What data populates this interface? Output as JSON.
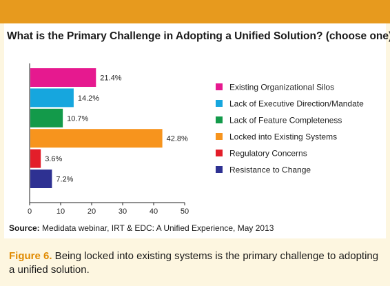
{
  "chart_data": {
    "type": "bar",
    "orientation": "horizontal",
    "title": "What is the Primary Challenge in Adopting a Unified Solution? (choose one)",
    "categories": [
      "Existing Organizational Silos",
      "Lack of Executive Direction/Mandate",
      "Lack of Feature Completeness",
      "Locked into Existing Systems",
      "Regulatory Concerns",
      "Resistance to Change"
    ],
    "values": [
      21.4,
      14.2,
      10.7,
      42.8,
      3.6,
      7.2
    ],
    "value_labels": [
      "21.4%",
      "14.2%",
      "10.7%",
      "42.8%",
      "3.6%",
      "7.2%"
    ],
    "colors": [
      "#e6198f",
      "#16a6de",
      "#139a4a",
      "#f7941d",
      "#e31e2a",
      "#2e3192"
    ],
    "xlim": [
      0,
      50
    ],
    "xticks": [
      0,
      10,
      20,
      30,
      40,
      50
    ],
    "xtick_labels": [
      "0",
      "10",
      "20",
      "30",
      "40",
      "50"
    ],
    "xlabel": "",
    "ylabel": "",
    "grid": false,
    "legend_position": "right"
  },
  "source": {
    "label": "Source:",
    "text": " Medidata webinar, IRT & EDC: A Unified Experience, May 2013"
  },
  "caption": {
    "figure_label": "Figure 6.",
    "text": " Being locked into existing systems is the primary challenge to adopting a unified solution."
  },
  "colors": {
    "accent": "#e79a1e",
    "background": "#fdf6e0",
    "panel": "#ffffff"
  }
}
